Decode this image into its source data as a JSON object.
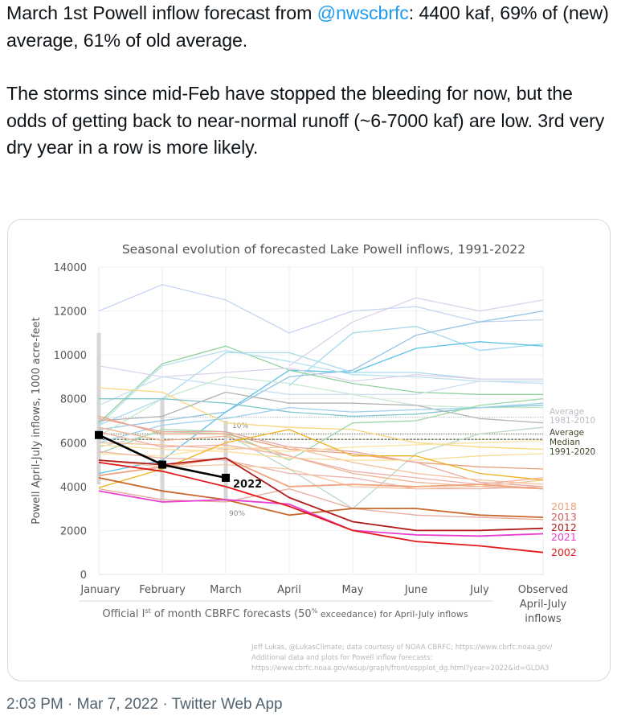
{
  "tweet": {
    "line1_pre": "March 1st Powell inflow forecast from ",
    "mention": "@nwscbrfc",
    "line1_post": ": 4400 kaf, 69% of (new) average, 61% of old average.",
    "paragraph2": "The storms since mid-Feb have stopped the bleeding for now, but the odds of getting back to near-normal runoff (~6-7000 kaf) are low. 3rd very dry year in a row is more likely."
  },
  "meta": {
    "time": "2:03 PM",
    "separator": "·",
    "date": "Mar 7, 2022",
    "source": "Twitter Web App"
  },
  "chart_data": {
    "type": "line",
    "title": "Seasonal evolution of forecasted Lake Powell inflows, 1991-2022",
    "ylabel": "Powell April-July inflows, 1000 acre-feet",
    "xlabel": "Official 1st of month CBRFC forecasts (50% exceedance) for April-July inflows",
    "xlabel_parts": {
      "pre": "Official I",
      "sup1": "st",
      "mid": " of month CBRFC forecasts (50",
      "sup2": "%",
      "post": " exceedance) for April-July inflows"
    },
    "categories": [
      "January",
      "February",
      "March",
      "April",
      "May",
      "June",
      "July",
      "Observed April-July inflows"
    ],
    "category_labels": [
      [
        "January"
      ],
      [
        "February"
      ],
      [
        "March"
      ],
      [
        "April"
      ],
      [
        "May"
      ],
      [
        "June"
      ],
      [
        "July"
      ],
      [
        "Observed",
        "April-July",
        "inflows"
      ]
    ],
    "ylim": [
      0,
      14000
    ],
    "yticks": [
      "0",
      "2000",
      "4000",
      "6000",
      "8000",
      "10000",
      "12000",
      "14000"
    ],
    "ytick_values": [
      0,
      2000,
      4000,
      6000,
      8000,
      10000,
      12000,
      14000
    ],
    "grid": true,
    "reference_lines": [
      {
        "name": "Average 1981-2010",
        "label": [
          "Average",
          "1981-2010"
        ],
        "value": 7160,
        "color": "#b7bec4",
        "style": "dotted"
      },
      {
        "name": "Average 1991-2020",
        "label": [
          "Average"
        ],
        "value": 6400,
        "color": "#6b7256",
        "style": "dotted"
      },
      {
        "name": "Median 1991-2020",
        "label": [
          "Median",
          "1991-2020"
        ],
        "value": 6150,
        "color": "#6b7256",
        "style": "dashed"
      }
    ],
    "ranges_2022": [
      {
        "month": "January",
        "high": 11000,
        "low": 4100
      },
      {
        "month": "February",
        "high": 8000,
        "low": 3300
      },
      {
        "month": "March",
        "high": 7000,
        "low": 3300,
        "high_label": "10%",
        "low_label": "90%"
      }
    ],
    "background_series": [
      {
        "values": [
          12000,
          13200,
          12500,
          11000,
          12000,
          12200,
          11500,
          11600
        ],
        "color": "#c5d3f2"
      },
      {
        "values": [
          null,
          null,
          null,
          9500,
          11500,
          12600,
          12000,
          12500
        ],
        "color": "#ddd2ea"
      },
      {
        "values": [
          null,
          null,
          null,
          8600,
          11000,
          11300,
          10200,
          10500
        ],
        "color": "#9fd8ec"
      },
      {
        "values": [
          6600,
          7000,
          7400,
          9000,
          9300,
          10900,
          11500,
          12000
        ],
        "color": "#93c3e3"
      },
      {
        "values": [
          4600,
          5200,
          7400,
          9300,
          9200,
          10300,
          10600,
          10400
        ],
        "color": "#5bc3e8"
      },
      {
        "values": [
          6900,
          9600,
          10400,
          9300,
          8700,
          8300,
          8200,
          8200
        ],
        "color": "#8fd19b"
      },
      {
        "values": [
          6800,
          9500,
          10200,
          9700,
          9100,
          9000,
          8800,
          8800
        ],
        "color": "#b9e0ef"
      },
      {
        "values": [
          6800,
          8000,
          10100,
          10100,
          9200,
          9200,
          8900,
          8900
        ],
        "color": "#a6dcee"
      },
      {
        "values": [
          9500,
          9000,
          9200,
          9400,
          8800,
          9100,
          8900,
          8900
        ],
        "color": "#ddd2ea"
      },
      {
        "values": [
          7700,
          9000,
          8600,
          8200,
          8200,
          8200,
          8800,
          8700
        ],
        "color": "#cbdff0"
      },
      {
        "values": [
          6300,
          8000,
          9000,
          8700,
          8200,
          7700,
          7600,
          7600
        ],
        "color": "#c7e8cf"
      },
      {
        "values": [
          8500,
          8300,
          6900,
          6700,
          6600,
          6000,
          5800,
          5700
        ],
        "color": "#f8d77e"
      },
      {
        "values": [
          8000,
          8000,
          7800,
          7400,
          7200,
          7300,
          7600,
          7700
        ],
        "color": "#7fc6cf"
      },
      {
        "values": [
          7000,
          7200,
          8300,
          7800,
          7800,
          7700,
          7100,
          6900
        ],
        "color": "#b3b3b3"
      },
      {
        "values": [
          6000,
          6800,
          7100,
          7600,
          7400,
          7500,
          7600,
          7800
        ],
        "color": "#9fd0ea"
      },
      {
        "values": [
          5500,
          6600,
          6500,
          5200,
          6900,
          7000,
          7700,
          8000
        ],
        "color": "#9fd6a8"
      },
      {
        "values": [
          5800,
          6500,
          6400,
          4800,
          3000,
          5500,
          6400,
          6700
        ],
        "color": "#bcd9c3"
      },
      {
        "values": [
          7200,
          6400,
          6400,
          5700,
          5500,
          5100,
          4900,
          4800
        ],
        "color": "#e8a07a"
      },
      {
        "values": [
          7100,
          6500,
          6500,
          5800,
          5600,
          5100,
          4200,
          4000
        ],
        "color": "#e9a9a0"
      },
      {
        "values": [
          6700,
          6100,
          6300,
          5400,
          4600,
          4200,
          4000,
          3900
        ],
        "color": "#f2b28c"
      },
      {
        "values": [
          6000,
          5900,
          5700,
          5800,
          5100,
          4600,
          4300,
          4100
        ],
        "color": "#f5c09c"
      },
      {
        "values": [
          5900,
          5700,
          5600,
          5300,
          5200,
          5200,
          5400,
          5500
        ],
        "color": "#f8dc95"
      },
      {
        "values": [
          5500,
          5400,
          5800,
          5600,
          5800,
          5900,
          6000,
          6100
        ],
        "color": "#fbe3a4"
      },
      {
        "values": [
          6500,
          5800,
          5900,
          5400,
          4700,
          4400,
          4100,
          4400
        ],
        "color": "#eeb0a6"
      },
      {
        "values": [
          5600,
          5300,
          5200,
          4600,
          4400,
          3900,
          3900,
          4000
        ],
        "color": "#e7b2ac"
      },
      {
        "values": [
          5200,
          4900,
          5000,
          4800,
          4000,
          3900,
          4000,
          4300
        ],
        "color": "#f5c6a2"
      },
      {
        "values": [
          3950,
          4800,
          6000,
          6600,
          5400,
          5400,
          4600,
          4300
        ],
        "color": "#f0b120"
      },
      {
        "values": [
          3900,
          3400,
          3300,
          3900,
          3000,
          2700,
          2600,
          2500
        ],
        "color": "#e8a99a"
      }
    ],
    "highlighted_series": [
      {
        "name": "2018",
        "values": [
          4500,
          4900,
          5300,
          4000,
          4100,
          4000,
          4100,
          3900
        ],
        "color": "#f0a27a"
      },
      {
        "name": "2013",
        "values": [
          4400,
          3800,
          3400,
          2700,
          3000,
          3000,
          2700,
          2600
        ],
        "color": "#c9672d"
      },
      {
        "name": "2012",
        "values": [
          5200,
          5000,
          5300,
          3500,
          2400,
          2000,
          2000,
          2100
        ],
        "color": "#b31b1b"
      },
      {
        "name": "2021",
        "values": [
          3800,
          3300,
          3400,
          3200,
          2000,
          1800,
          1750,
          1850
        ],
        "color": "#e83ed1"
      },
      {
        "name": "2002",
        "values": [
          5100,
          4700,
          4000,
          3100,
          2000,
          1500,
          1300,
          1000
        ],
        "color": "#e3191b"
      }
    ],
    "legend_labels": [
      {
        "name": "2018",
        "color": "#f0a27a"
      },
      {
        "name": "2013",
        "color": "#d0605a"
      },
      {
        "name": "2012",
        "color": "#b31b1b"
      },
      {
        "name": "2021",
        "color": "#e83ed1"
      },
      {
        "name": "2002",
        "color": "#e3191b"
      }
    ],
    "current_series": {
      "name": "2022",
      "values": [
        6350,
        5000,
        4400
      ],
      "color": "#000000"
    },
    "credits": [
      "Jeff Lukas, @LukasClimate; data courtesy of NOAA CBRFC; https://www.cbrfc.noaa.gov/",
      "Additional data and plots for Powell inflow forecasts:",
      "https://www.cbrfc.noaa.gov/wsup/graph/front/espplot_dg.html?year=2022&id=GLDA3"
    ]
  }
}
